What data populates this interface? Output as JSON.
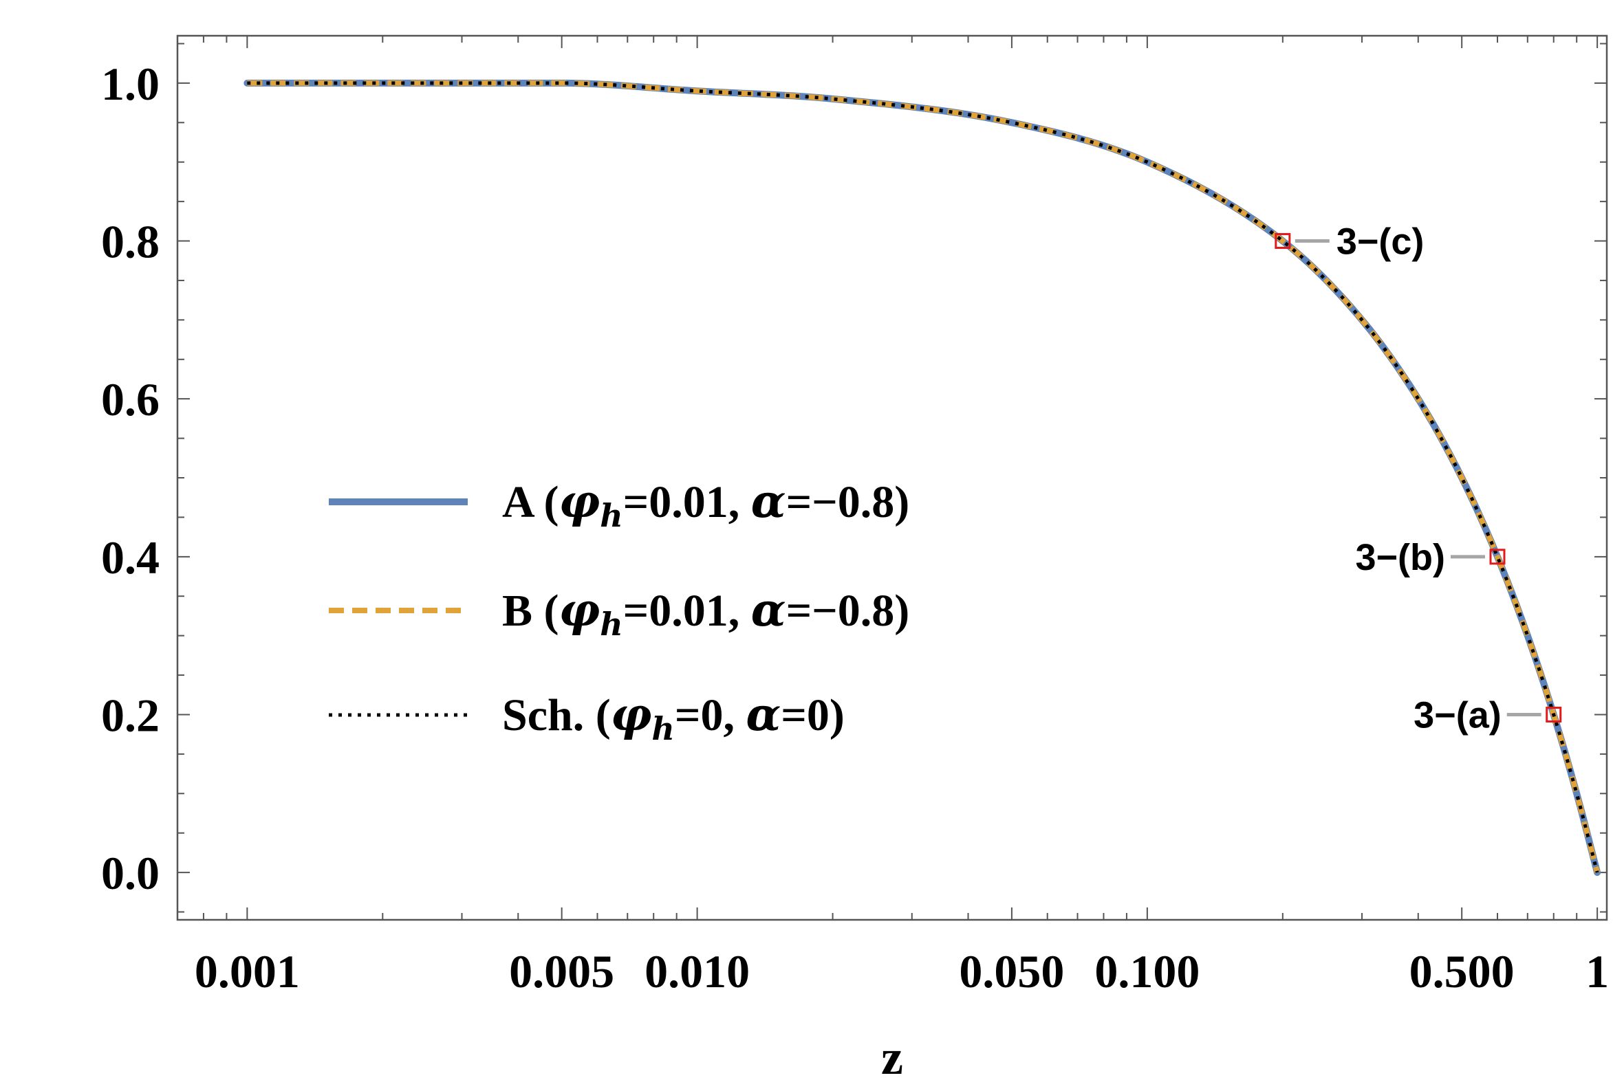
{
  "chart_data": {
    "type": "line",
    "title": "",
    "xlabel": "z",
    "ylabel": "",
    "x_scale": "log",
    "xlim": [
      0.0007,
      1.05
    ],
    "ylim": [
      -0.06,
      1.06
    ],
    "grid": false,
    "legend_position": "center-left",
    "x_ticks": [
      {
        "value": 0.001,
        "label": "0.001"
      },
      {
        "value": 0.005,
        "label": "0.005"
      },
      {
        "value": 0.01,
        "label": "0.010"
      },
      {
        "value": 0.05,
        "label": "0.050"
      },
      {
        "value": 0.1,
        "label": "0.100"
      },
      {
        "value": 0.5,
        "label": "0.500"
      },
      {
        "value": 1,
        "label": "1"
      }
    ],
    "y_ticks": [
      {
        "value": 0.0,
        "label": "0.0"
      },
      {
        "value": 0.2,
        "label": "0.2"
      },
      {
        "value": 0.4,
        "label": "0.4"
      },
      {
        "value": 0.6,
        "label": "0.6"
      },
      {
        "value": 0.8,
        "label": "0.8"
      },
      {
        "value": 1.0,
        "label": "1.0"
      }
    ],
    "series": [
      {
        "name": "A",
        "legend": {
          "prefix": "A (",
          "sym1": "φ",
          "sub": "h",
          "mid": "=0.01, ",
          "sym2": "α",
          "suffix": "=−0.8)"
        },
        "color": "#5f84ba",
        "style": "solid",
        "x": [
          0.001,
          0.002,
          0.005,
          0.01,
          0.02,
          0.05,
          0.1,
          0.2,
          0.3,
          0.4,
          0.5,
          0.6,
          0.7,
          0.8,
          0.9,
          1.0
        ],
        "y": [
          1.0,
          1.0,
          1.0,
          0.99,
          0.98,
          0.95,
          0.9,
          0.8,
          0.7,
          0.6,
          0.5,
          0.4,
          0.3,
          0.2,
          0.1,
          0.0
        ]
      },
      {
        "name": "B",
        "legend": {
          "prefix": "B (",
          "sym1": "φ",
          "sub": "h",
          "mid": "=0.01, ",
          "sym2": "α",
          "suffix": "=−0.8)"
        },
        "color": "#e0a33a",
        "style": "dashed",
        "x": [
          0.001,
          0.002,
          0.005,
          0.01,
          0.02,
          0.05,
          0.1,
          0.2,
          0.3,
          0.4,
          0.5,
          0.6,
          0.7,
          0.8,
          0.9,
          1.0
        ],
        "y": [
          1.0,
          1.0,
          1.0,
          0.99,
          0.98,
          0.95,
          0.9,
          0.8,
          0.7,
          0.6,
          0.5,
          0.4,
          0.3,
          0.2,
          0.1,
          0.0
        ]
      },
      {
        "name": "Sch.",
        "legend": {
          "prefix": "Sch. (",
          "sym1": "φ",
          "sub": "h",
          "mid": "=0, ",
          "sym2": "α",
          "suffix": "=0)"
        },
        "color": "#000000",
        "style": "dotted",
        "x": [
          0.001,
          0.002,
          0.005,
          0.01,
          0.02,
          0.05,
          0.1,
          0.2,
          0.3,
          0.4,
          0.5,
          0.6,
          0.7,
          0.8,
          0.9,
          1.0
        ],
        "y": [
          1.0,
          1.0,
          1.0,
          0.99,
          0.98,
          0.95,
          0.9,
          0.8,
          0.7,
          0.6,
          0.5,
          0.4,
          0.3,
          0.2,
          0.1,
          0.0
        ]
      }
    ],
    "annotations": [
      {
        "label": "3−(a)",
        "x": 0.8,
        "y": 0.2,
        "side": "left"
      },
      {
        "label": "3−(b)",
        "x": 0.6,
        "y": 0.4,
        "side": "left"
      },
      {
        "label": "3−(c)",
        "x": 0.2,
        "y": 0.8,
        "side": "right"
      }
    ],
    "colors": {
      "marker": "#e31a1c",
      "leader": "#a6a6a6",
      "frame": "#555555"
    }
  }
}
